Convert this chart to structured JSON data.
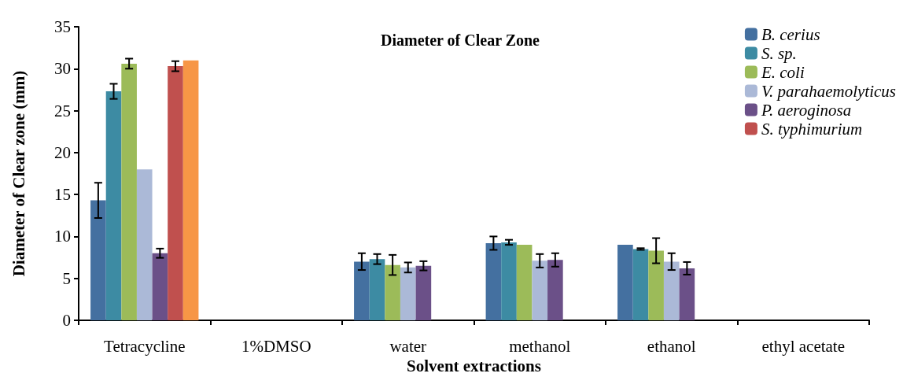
{
  "chart_data": {
    "type": "bar",
    "title": "Diameter of Clear Zone",
    "xlabel": "Solvent extractions",
    "ylabel": "Diameter of Clear zone (mm)",
    "categories": [
      "Tetracycline",
      "1%DMSO",
      "water",
      "methanol",
      "ethanol",
      "ethyl acetate"
    ],
    "series": [
      {
        "name": "B. cerius",
        "color": "#4470a0",
        "values": [
          14.3,
          null,
          7.0,
          9.2,
          9.0,
          null
        ],
        "errors": [
          2.1,
          null,
          1.0,
          0.8,
          null,
          null
        ]
      },
      {
        "name": "S. sp.",
        "color": "#3d8ba3",
        "values": [
          27.3,
          null,
          7.3,
          9.3,
          8.5,
          null
        ],
        "errors": [
          0.9,
          null,
          0.6,
          0.3,
          0.1,
          null
        ]
      },
      {
        "name": "E. coli",
        "color": "#9cbb59",
        "values": [
          30.6,
          null,
          6.6,
          9.0,
          8.3,
          null
        ],
        "errors": [
          0.6,
          null,
          1.2,
          null,
          1.5,
          null
        ]
      },
      {
        "name": "V. parahaemolyticus",
        "color": "#abb9d7",
        "values": [
          18.0,
          null,
          6.3,
          7.1,
          7.0,
          null
        ],
        "errors": [
          null,
          null,
          0.6,
          0.8,
          1.0,
          null
        ]
      },
      {
        "name": "P. aeroginosa",
        "color": "#6b5088",
        "values": [
          8.0,
          null,
          6.5,
          7.2,
          6.2,
          null
        ],
        "errors": [
          0.55,
          null,
          0.55,
          0.8,
          0.75,
          null
        ]
      },
      {
        "name": "S. typhimurium",
        "color": "#c0504e",
        "values": [
          30.3,
          null,
          null,
          null,
          null,
          null
        ],
        "errors": [
          0.6,
          null,
          null,
          null,
          null,
          null
        ]
      },
      {
        "color": "#f79646",
        "values": [
          31.0,
          null,
          null,
          null,
          null,
          null
        ]
      }
    ],
    "ylim": [
      0,
      35
    ],
    "yticks": [
      0,
      5,
      10,
      15,
      20,
      25,
      30,
      35
    ],
    "grid": false,
    "legend": "top right"
  }
}
